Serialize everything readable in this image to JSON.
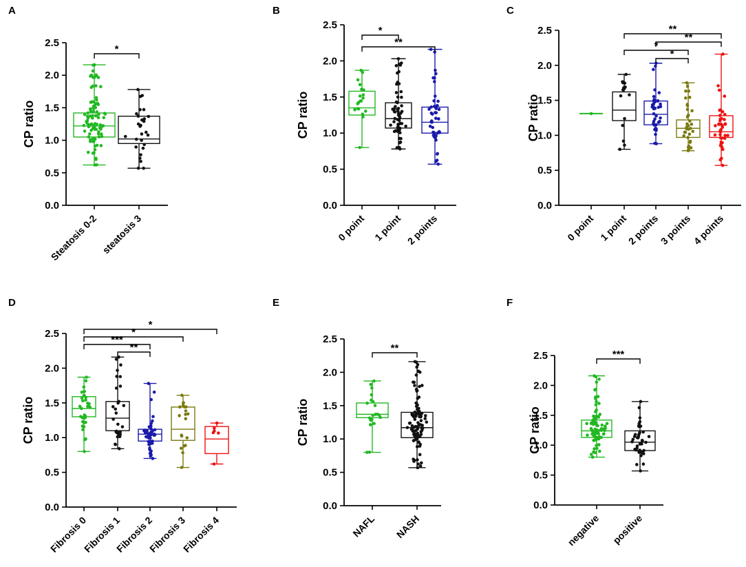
{
  "chart_data": [
    {
      "panel": "A",
      "type": "box",
      "ylabel": "CP ratio",
      "ylim": [
        0,
        2.5
      ],
      "yticks": [
        "0.0",
        "0.5",
        "1.0",
        "1.5",
        "2.0",
        "2.5"
      ],
      "categories": [
        "Steatosis 0-2",
        "steatosis 3"
      ],
      "colors": [
        "#22b822",
        "#111111"
      ],
      "boxes": [
        {
          "min": 0.62,
          "q1": 1.05,
          "median": 1.22,
          "q3": 1.42,
          "max": 2.16,
          "n": 90
        },
        {
          "min": 0.57,
          "q1": 0.95,
          "median": 1.02,
          "q3": 1.37,
          "max": 1.78,
          "n": 28
        }
      ],
      "comparisons": [
        {
          "from": 0,
          "to": 1,
          "label": "*"
        }
      ]
    },
    {
      "panel": "B",
      "type": "box",
      "ylabel": "CP ratio",
      "ylim": [
        0,
        2.5
      ],
      "yticks": [
        "0.0",
        "0.5",
        "1.0",
        "1.5",
        "2.0",
        "2.5"
      ],
      "categories": [
        "0 point",
        "1 point",
        "2 points"
      ],
      "colors": [
        "#22b822",
        "#111111",
        "#1a1aaa"
      ],
      "boxes": [
        {
          "min": 0.8,
          "q1": 1.25,
          "median": 1.35,
          "q3": 1.58,
          "max": 1.87,
          "n": 20
        },
        {
          "min": 0.78,
          "q1": 1.07,
          "median": 1.2,
          "q3": 1.42,
          "max": 2.03,
          "n": 60
        },
        {
          "min": 0.57,
          "q1": 1.0,
          "median": 1.15,
          "q3": 1.36,
          "max": 2.16,
          "n": 45
        }
      ],
      "comparisons": [
        {
          "from": 0,
          "to": 1,
          "label": "*"
        },
        {
          "from": 0,
          "to": 2,
          "label": "**"
        }
      ]
    },
    {
      "panel": "C",
      "type": "box",
      "ylabel": "CP ratio",
      "ylim": [
        0,
        2.5
      ],
      "yticks": [
        "0.0",
        "0.5",
        "1.0",
        "1.5",
        "2.0",
        "2.5"
      ],
      "categories": [
        "0 point",
        "1 point",
        "2 points",
        "3 points",
        "4 points"
      ],
      "colors": [
        "#22b822",
        "#111111",
        "#1a1aaa",
        "#7a7a10",
        "#ee1111"
      ],
      "boxes": [
        {
          "min": 1.31,
          "q1": 1.31,
          "median": 1.31,
          "q3": 1.31,
          "max": 1.31,
          "n": 1
        },
        {
          "min": 0.8,
          "q1": 1.21,
          "median": 1.36,
          "q3": 1.62,
          "max": 1.87,
          "n": 16
        },
        {
          "min": 0.88,
          "q1": 1.15,
          "median": 1.3,
          "q3": 1.49,
          "max": 2.03,
          "n": 40
        },
        {
          "min": 0.78,
          "q1": 0.97,
          "median": 1.1,
          "q3": 1.22,
          "max": 1.75,
          "n": 35
        },
        {
          "min": 0.57,
          "q1": 0.97,
          "median": 1.05,
          "q3": 1.28,
          "max": 2.16,
          "n": 40
        }
      ],
      "comparisons": [
        {
          "from": 1,
          "to": 4,
          "label": "**"
        },
        {
          "from": 2,
          "to": 4,
          "label": "**"
        },
        {
          "from": 1,
          "to": 3,
          "label": "*"
        },
        {
          "from": 2,
          "to": 3,
          "label": "*"
        }
      ]
    },
    {
      "panel": "D",
      "type": "box",
      "ylabel": "CP ratio",
      "ylim": [
        0,
        2.5
      ],
      "yticks": [
        "0.0",
        "0.5",
        "1.0",
        "1.5",
        "2.0",
        "2.5"
      ],
      "categories": [
        "Fibrosis 0",
        "Fibrosis 1",
        "Fibrosis 2",
        "Fibrosis 3",
        "Fibrosis 4"
      ],
      "colors": [
        "#22b822",
        "#111111",
        "#1a1aaa",
        "#7a7a10",
        "#ee1111"
      ],
      "boxes": [
        {
          "min": 0.8,
          "q1": 1.3,
          "median": 1.42,
          "q3": 1.59,
          "max": 1.87,
          "n": 35
        },
        {
          "min": 0.84,
          "q1": 1.1,
          "median": 1.28,
          "q3": 1.52,
          "max": 2.16,
          "n": 35
        },
        {
          "min": 0.7,
          "q1": 0.95,
          "median": 1.05,
          "q3": 1.12,
          "max": 1.78,
          "n": 50
        },
        {
          "min": 0.57,
          "q1": 0.96,
          "median": 1.12,
          "q3": 1.44,
          "max": 1.61,
          "n": 20
        },
        {
          "min": 0.62,
          "q1": 0.77,
          "median": 0.98,
          "q3": 1.16,
          "max": 1.21,
          "n": 6
        }
      ],
      "comparisons": [
        {
          "from": 0,
          "to": 4,
          "label": "*"
        },
        {
          "from": 0,
          "to": 3,
          "label": "*"
        },
        {
          "from": 0,
          "to": 2,
          "label": "***"
        },
        {
          "from": 1,
          "to": 2,
          "label": "**"
        }
      ]
    },
    {
      "panel": "E",
      "type": "box",
      "ylabel": "CP ratio",
      "ylim": [
        0,
        2.5
      ],
      "yticks": [
        "0.0",
        "0.5",
        "1.0",
        "1.5",
        "2.0",
        "2.5"
      ],
      "categories": [
        "NAFL",
        "NASH"
      ],
      "colors": [
        "#22b822",
        "#111111"
      ],
      "boxes": [
        {
          "min": 0.8,
          "q1": 1.32,
          "median": 1.37,
          "q3": 1.54,
          "max": 1.87,
          "n": 20
        },
        {
          "min": 0.57,
          "q1": 1.02,
          "median": 1.17,
          "q3": 1.4,
          "max": 2.16,
          "n": 100
        }
      ],
      "comparisons": [
        {
          "from": 0,
          "to": 1,
          "label": "**"
        }
      ]
    },
    {
      "panel": "F",
      "type": "box",
      "ylabel": "CP ratio",
      "ylim": [
        0,
        2.5
      ],
      "yticks": [
        "0.0",
        "0.5",
        "1.0",
        "1.5",
        "2.0",
        "2.5"
      ],
      "categories": [
        "negative",
        "positive"
      ],
      "colors": [
        "#22b822",
        "#111111"
      ],
      "boxes": [
        {
          "min": 0.8,
          "q1": 1.13,
          "median": 1.24,
          "q3": 1.42,
          "max": 2.16,
          "n": 85
        },
        {
          "min": 0.57,
          "q1": 0.91,
          "median": 1.05,
          "q3": 1.24,
          "max": 1.73,
          "n": 40
        }
      ],
      "comparisons": [
        {
          "from": 0,
          "to": 1,
          "label": "***"
        }
      ]
    }
  ]
}
